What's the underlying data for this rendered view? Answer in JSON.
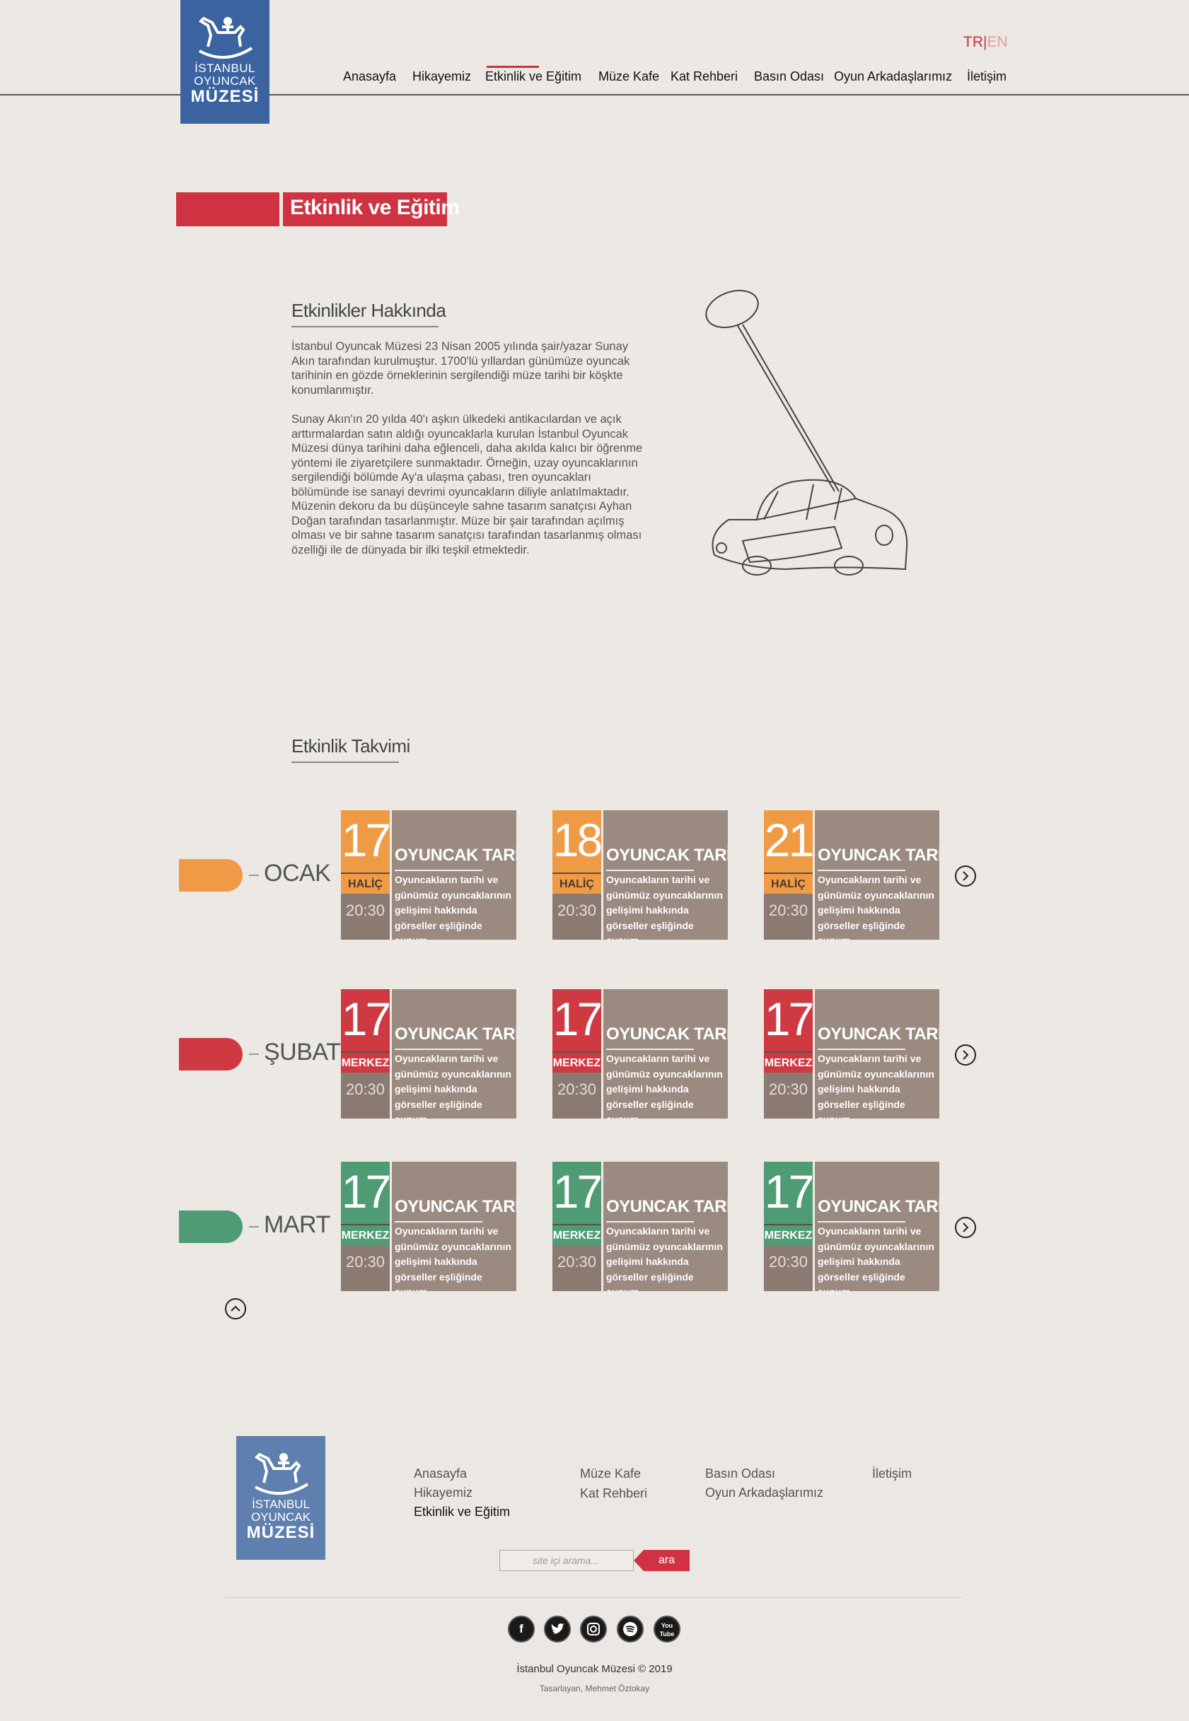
{
  "brand": {
    "line1": "İSTANBUL",
    "line2": "OYUNCAK",
    "line3": "MÜZESİ"
  },
  "lang": {
    "tr": "TR",
    "sep": "|",
    "en": "EN"
  },
  "nav": [
    "Anasayfa",
    "Hikayemiz",
    "Etkinlik ve Eğitim",
    "Müze Kafe",
    "Kat Rehberi",
    "Basın Odası",
    "Oyun Arkadaşlarımız",
    "İletişim"
  ],
  "page_title": "Etkinlik ve Eğitim",
  "about": {
    "heading": "Etkinlikler Hakkında",
    "p1": "İstanbul Oyuncak Müzesi 23 Nisan 2005 yılında şair/yazar Sunay Akın tarafından kurulmuştur. 1700'lü yıllardan günümüze oyuncak tarihinin en gözde örneklerinin sergilendiği müze tarihi bir köşkte konumlanmıştır.",
    "p2": "Sunay Akın'ın 20 yılda 40'ı aşkın ülkedeki antikacılardan ve açık arttırmalardan satın aldığı oyuncaklarla kurulan İstanbul Oyuncak Müzesi dünya tarihini daha eğlenceli, daha akılda kalıcı bir öğrenme yöntemi ile ziyaretçilere sunmaktadır. Örneğin, uzay oyuncaklarının sergilendiği bölümde Ay'a ulaşma çabası, tren oyuncakları bölümünde ise sanayi devrimi oyuncakların diliyle anlatılmaktadır. Müzenin dekoru da bu düşünceyle sahne tasarım sanatçısı Ayhan Doğan tarafından tasarlanmıştır. Müze bir şair tarafından açılmış olması ve bir sahne tasarım sanatçısı tarafından tasarlanmış olması özelliği ile de dünyada bir ilki teşkil etmektedir."
  },
  "calendar": {
    "heading": "Etkinlik Takvimi",
    "months": [
      {
        "name": "OCAK",
        "color": "#ef9a45",
        "events": [
          {
            "day": "17",
            "loc": "HALİÇ",
            "time": "20:30",
            "title": "OYUNCAK TARİHİ",
            "desc": "Oyuncakların tarihi ve günümüz oyuncaklarının gelişimi hakkında görseller eşliğinde sunum..."
          },
          {
            "day": "18",
            "loc": "HALİÇ",
            "time": "20:30",
            "title": "OYUNCAK TARİHİ",
            "desc": "Oyuncakların tarihi ve günümüz oyuncaklarının gelişimi hakkında görseller eşliğinde sunum..."
          },
          {
            "day": "21",
            "loc": "HALİÇ",
            "time": "20:30",
            "title": "OYUNCAK TARİHİ",
            "desc": "Oyuncakların tarihi ve günümüz oyuncaklarının gelişimi hakkında görseller eşliğinde sunum..."
          }
        ]
      },
      {
        "name": "ŞUBAT",
        "color": "#cf3a42",
        "events": [
          {
            "day": "17",
            "loc": "MERKEZ",
            "time": "20:30",
            "title": "OYUNCAK TARİHİ",
            "desc": "Oyuncakların tarihi ve günümüz oyuncaklarının gelişimi hakkında görseller eşliğinde sunum..."
          },
          {
            "day": "17",
            "loc": "MERKEZ",
            "time": "20:30",
            "title": "OYUNCAK TARİHİ",
            "desc": "Oyuncakların tarihi ve günümüz oyuncaklarının gelişimi hakkında görseller eşliğinde sunum..."
          },
          {
            "day": "17",
            "loc": "MERKEZ",
            "time": "20:30",
            "title": "OYUNCAK TARİHİ",
            "desc": "Oyuncakların tarihi ve günümüz oyuncaklarının gelişimi hakkında görseller eşliğinde sunum..."
          }
        ]
      },
      {
        "name": "MART",
        "color": "#4f9b74",
        "events": [
          {
            "day": "17",
            "loc": "MERKEZ",
            "time": "20:30",
            "title": "OYUNCAK TARİHİ",
            "desc": "Oyuncakların tarihi ve günümüz oyuncaklarının gelişimi hakkında görseller eşliğinde sunum..."
          },
          {
            "day": "17",
            "loc": "MERKEZ",
            "time": "20:30",
            "title": "OYUNCAK TARİHİ",
            "desc": "Oyuncakların tarihi ve günümüz oyuncaklarının gelişimi hakkında görseller eşliğinde sunum..."
          },
          {
            "day": "17",
            "loc": "MERKEZ",
            "time": "20:30",
            "title": "OYUNCAK TARİHİ",
            "desc": "Oyuncakların tarihi ve günümüz oyuncaklarının gelişimi hakkında görseller eşliğinde sunum..."
          }
        ]
      }
    ]
  },
  "footer": {
    "col1": [
      "Anasayfa",
      "Hikayemiz",
      "Etkinlik ve Eğitim"
    ],
    "col2": [
      "Müze Kafe",
      "Kat Rehberi"
    ],
    "col3": [
      "Basın Odası",
      "Oyun Arkadaşlarımız"
    ],
    "col4": [
      "İletişim"
    ],
    "search_placeholder": "site içi arama...",
    "search_button": "ara",
    "social": [
      "facebook-icon",
      "twitter-icon",
      "instagram-icon",
      "spotify-icon",
      "youtube-icon"
    ],
    "copyright": "İstanbul Oyuncak Müzesi © 2019",
    "designer": "Tasarlayan, Mehmet Öztokay"
  },
  "colors": {
    "accent": "#cf3342",
    "brand_blue": "#3a63a0",
    "card": "#9a8a80"
  }
}
